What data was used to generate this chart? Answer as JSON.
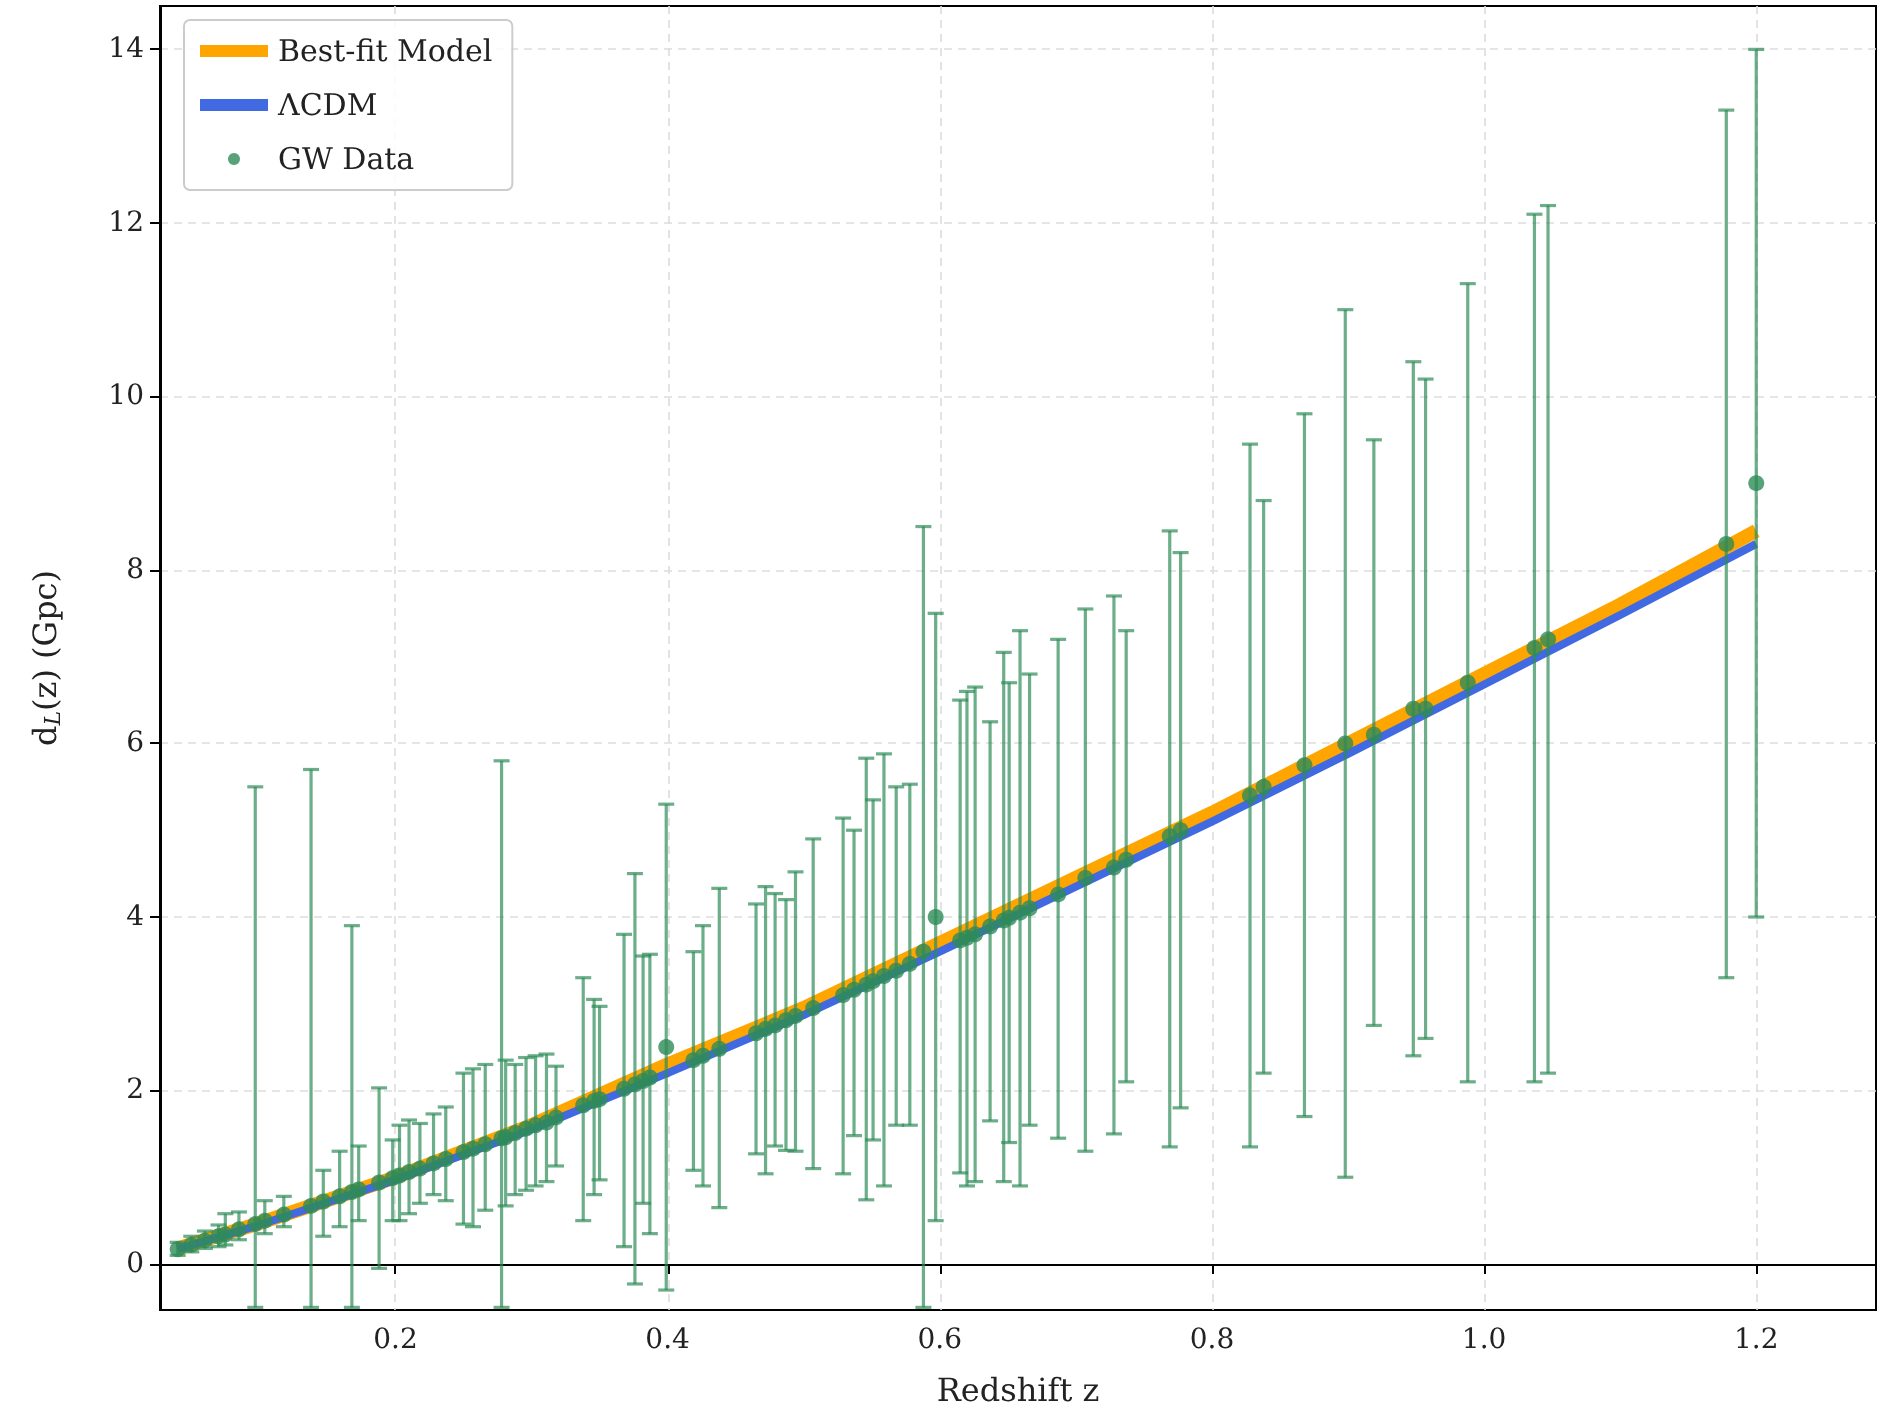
{
  "chart_data": {
    "type": "scatter",
    "xlabel": "Redshift z",
    "ylabel": "d$_{L}$(z) (Gpc)",
    "xlim": [
      0.027,
      1.288
    ],
    "xticks": [
      0.2,
      0.4,
      0.6,
      0.8,
      {
        "value": 1.0,
        "label": "1.0"
      },
      1.2
    ],
    "ylim": [
      -0.53,
      14.5
    ],
    "yticks": [
      0,
      2,
      4,
      6,
      8,
      10,
      12,
      14
    ],
    "grid": true,
    "legend": "top left",
    "marker": "circle",
    "series": [
      {
        "name": "Best-fit Model",
        "type": "line",
        "marker": "none",
        "color": "#ffa500",
        "x": [
          0.04,
          0.1,
          0.2,
          0.3,
          0.4,
          0.5,
          0.6,
          0.7,
          0.8,
          0.9,
          1.0,
          1.1,
          1.2
        ],
        "values": [
          0.18,
          0.47,
          1.0,
          1.6,
          2.3,
          2.95,
          3.7,
          4.45,
          5.2,
          6.0,
          6.8,
          7.6,
          8.45
        ]
      },
      {
        "name": "ΛCDM",
        "type": "line",
        "marker": "none",
        "color": "#4169e1",
        "x": [
          0.04,
          0.1,
          0.2,
          0.3,
          0.4,
          0.5,
          0.6,
          0.7,
          0.8,
          0.9,
          1.0,
          1.1,
          1.2
        ],
        "values": [
          0.17,
          0.45,
          0.97,
          1.55,
          2.2,
          2.87,
          3.6,
          4.35,
          5.1,
          5.88,
          6.68,
          7.48,
          8.3
        ]
      },
      {
        "name": "GW Data",
        "type": "scatter",
        "color": "#2e8b57",
        "x": [
          0.04,
          0.05,
          0.06,
          0.07,
          0.075,
          0.085,
          0.097,
          0.104,
          0.118,
          0.138,
          0.147,
          0.159,
          0.168,
          0.173,
          0.188,
          0.198,
          0.203,
          0.21,
          0.218,
          0.228,
          0.237,
          0.25,
          0.257,
          0.266,
          0.278,
          0.281,
          0.288,
          0.296,
          0.303,
          0.311,
          0.318,
          0.338,
          0.346,
          0.35,
          0.368,
          0.376,
          0.382,
          0.387,
          0.399,
          0.419,
          0.426,
          0.438,
          0.465,
          0.472,
          0.479,
          0.487,
          0.494,
          0.507,
          0.529,
          0.537,
          0.546,
          0.551,
          0.559,
          0.568,
          0.578,
          0.588,
          0.597,
          0.615,
          0.62,
          0.626,
          0.637,
          0.647,
          0.651,
          0.659,
          0.666,
          0.687,
          0.707,
          0.728,
          0.737,
          0.769,
          0.777,
          0.828,
          0.838,
          0.868,
          0.898,
          0.919,
          0.948,
          0.957,
          0.988,
          1.037,
          1.047,
          1.178,
          1.2
        ],
        "values": [
          0.17,
          0.22,
          0.27,
          0.32,
          0.34,
          0.4,
          0.46,
          0.5,
          0.57,
          0.67,
          0.72,
          0.78,
          0.83,
          0.86,
          0.94,
          0.99,
          1.02,
          1.06,
          1.1,
          1.16,
          1.21,
          1.29,
          1.33,
          1.38,
          1.45,
          1.46,
          1.51,
          1.56,
          1.6,
          1.63,
          1.69,
          1.83,
          1.88,
          1.9,
          2.02,
          2.07,
          2.11,
          2.15,
          2.5,
          2.35,
          2.4,
          2.48,
          2.66,
          2.71,
          2.75,
          2.81,
          2.86,
          2.95,
          3.1,
          3.16,
          3.22,
          3.26,
          3.32,
          3.38,
          3.46,
          3.6,
          4.0,
          3.73,
          3.76,
          3.8,
          3.89,
          3.96,
          3.99,
          4.05,
          4.1,
          4.26,
          4.45,
          4.57,
          4.66,
          4.93,
          5.0,
          5.4,
          5.5,
          5.75,
          6.0,
          6.1,
          6.4,
          6.4,
          6.7,
          7.1,
          7.2,
          8.3,
          9.0
        ],
        "errors": [
          [
            0.1,
            0.25
          ],
          [
            0.14,
            0.32
          ],
          [
            0.18,
            0.38
          ],
          [
            0.2,
            0.45
          ],
          [
            0.22,
            0.58
          ],
          [
            0.28,
            0.6
          ],
          [
            -0.5,
            5.5
          ],
          [
            0.35,
            0.73
          ],
          [
            0.43,
            0.78
          ],
          [
            -0.5,
            5.7
          ],
          [
            0.32,
            1.08
          ],
          [
            0.43,
            1.3
          ],
          [
            -0.5,
            3.9
          ],
          [
            0.5,
            1.36
          ],
          [
            -0.05,
            2.03
          ],
          [
            0.5,
            1.43
          ],
          [
            0.5,
            1.6
          ],
          [
            0.58,
            1.66
          ],
          [
            0.7,
            1.62
          ],
          [
            0.8,
            1.73
          ],
          [
            0.73,
            1.81
          ],
          [
            0.46,
            2.2
          ],
          [
            0.43,
            2.25
          ],
          [
            0.62,
            2.3
          ],
          [
            -0.5,
            5.8
          ],
          [
            0.67,
            2.35
          ],
          [
            0.8,
            2.3
          ],
          [
            0.85,
            2.38
          ],
          [
            0.9,
            2.4
          ],
          [
            0.95,
            2.42
          ],
          [
            1.13,
            2.28
          ],
          [
            0.5,
            3.3
          ],
          [
            0.8,
            3.05
          ],
          [
            0.97,
            2.97
          ],
          [
            0.2,
            3.8
          ],
          [
            -0.23,
            4.5
          ],
          [
            0.7,
            3.55
          ],
          [
            0.35,
            3.57
          ],
          [
            -0.3,
            5.3
          ],
          [
            1.08,
            3.6
          ],
          [
            0.9,
            3.9
          ],
          [
            0.65,
            4.33
          ],
          [
            1.27,
            4.15
          ],
          [
            1.04,
            4.35
          ],
          [
            1.36,
            4.27
          ],
          [
            1.31,
            4.2
          ],
          [
            1.3,
            4.52
          ],
          [
            1.1,
            4.9
          ],
          [
            1.04,
            5.14
          ],
          [
            1.48,
            5.0
          ],
          [
            0.74,
            5.83
          ],
          [
            1.43,
            5.35
          ],
          [
            0.9,
            5.88
          ],
          [
            1.6,
            5.5
          ],
          [
            1.6,
            5.53
          ],
          [
            -0.5,
            8.5
          ],
          [
            0.5,
            7.5
          ],
          [
            1.05,
            6.5
          ],
          [
            0.9,
            6.6
          ],
          [
            0.95,
            6.65
          ],
          [
            1.65,
            6.25
          ],
          [
            0.95,
            7.05
          ],
          [
            1.4,
            6.7
          ],
          [
            0.9,
            7.3
          ],
          [
            1.6,
            6.8
          ],
          [
            1.45,
            7.2
          ],
          [
            1.3,
            7.55
          ],
          [
            1.5,
            7.7
          ],
          [
            2.1,
            7.3
          ],
          [
            1.35,
            8.45
          ],
          [
            1.8,
            8.2
          ],
          [
            1.35,
            9.45
          ],
          [
            2.2,
            8.8
          ],
          [
            1.7,
            9.8
          ],
          [
            1.0,
            11.0
          ],
          [
            2.75,
            9.5
          ],
          [
            2.4,
            10.4
          ],
          [
            2.6,
            10.2
          ],
          [
            2.1,
            11.3
          ],
          [
            2.1,
            12.1
          ],
          [
            2.2,
            12.2
          ],
          [
            3.3,
            13.3
          ],
          [
            4.0,
            14.0
          ]
        ]
      }
    ]
  }
}
